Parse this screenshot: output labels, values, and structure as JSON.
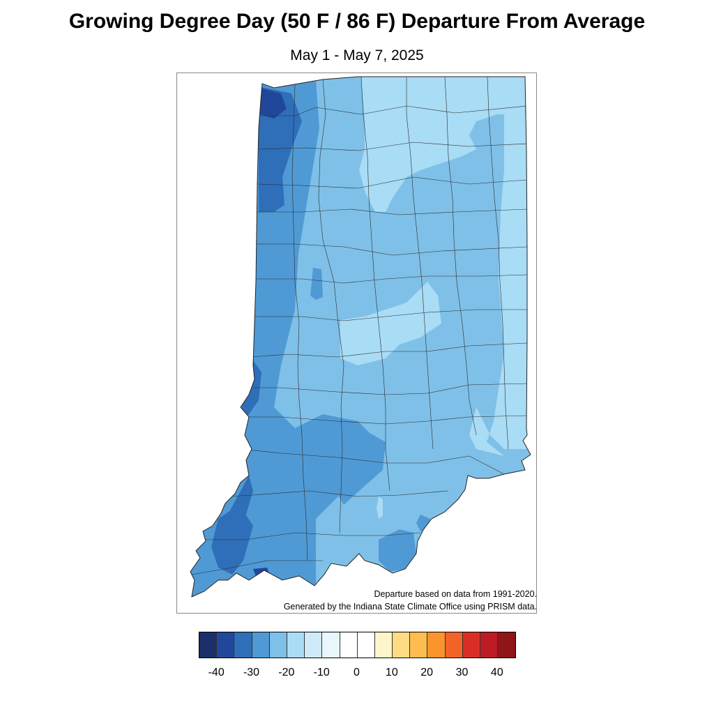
{
  "header": {
    "title": "Growing Degree Day (50 F / 86 F) Departure From Average",
    "subtitle": "May 1 - May 7, 2025"
  },
  "notes": {
    "line1": "Departure based on data from 1991-2020.",
    "line2": "Generated by the Indiana State Climate Office using PRISM data."
  },
  "colors": {
    "lt_neg40": "#1c2f6b",
    "neg40_neg35": "#21479a",
    "neg35_neg30": "#2f6eb8",
    "neg30_neg25": "#4f9ad5",
    "neg25_neg20": "#7fc0e8",
    "neg20_neg15": "#a9dcf5",
    "neg15_neg10": "#cfeaf8",
    "neg10_neg5": "#e9f6fc",
    "neg5_0": "#ffffff",
    "zero_5": "#ffffff",
    "five_10": "#fff5cc",
    "ten_15": "#fedc83",
    "fifteen_20": "#fdbd4f",
    "twenty_25": "#f9952c",
    "twentyfive_30": "#f16327",
    "thirty_35": "#da2f26",
    "thirtyfive_40": "#bd1c24",
    "gt_40": "#8f1519"
  },
  "legend": {
    "ticks": [
      "-40",
      "-30",
      "-20",
      "-10",
      "0",
      "10",
      "20",
      "30",
      "40"
    ]
  }
}
